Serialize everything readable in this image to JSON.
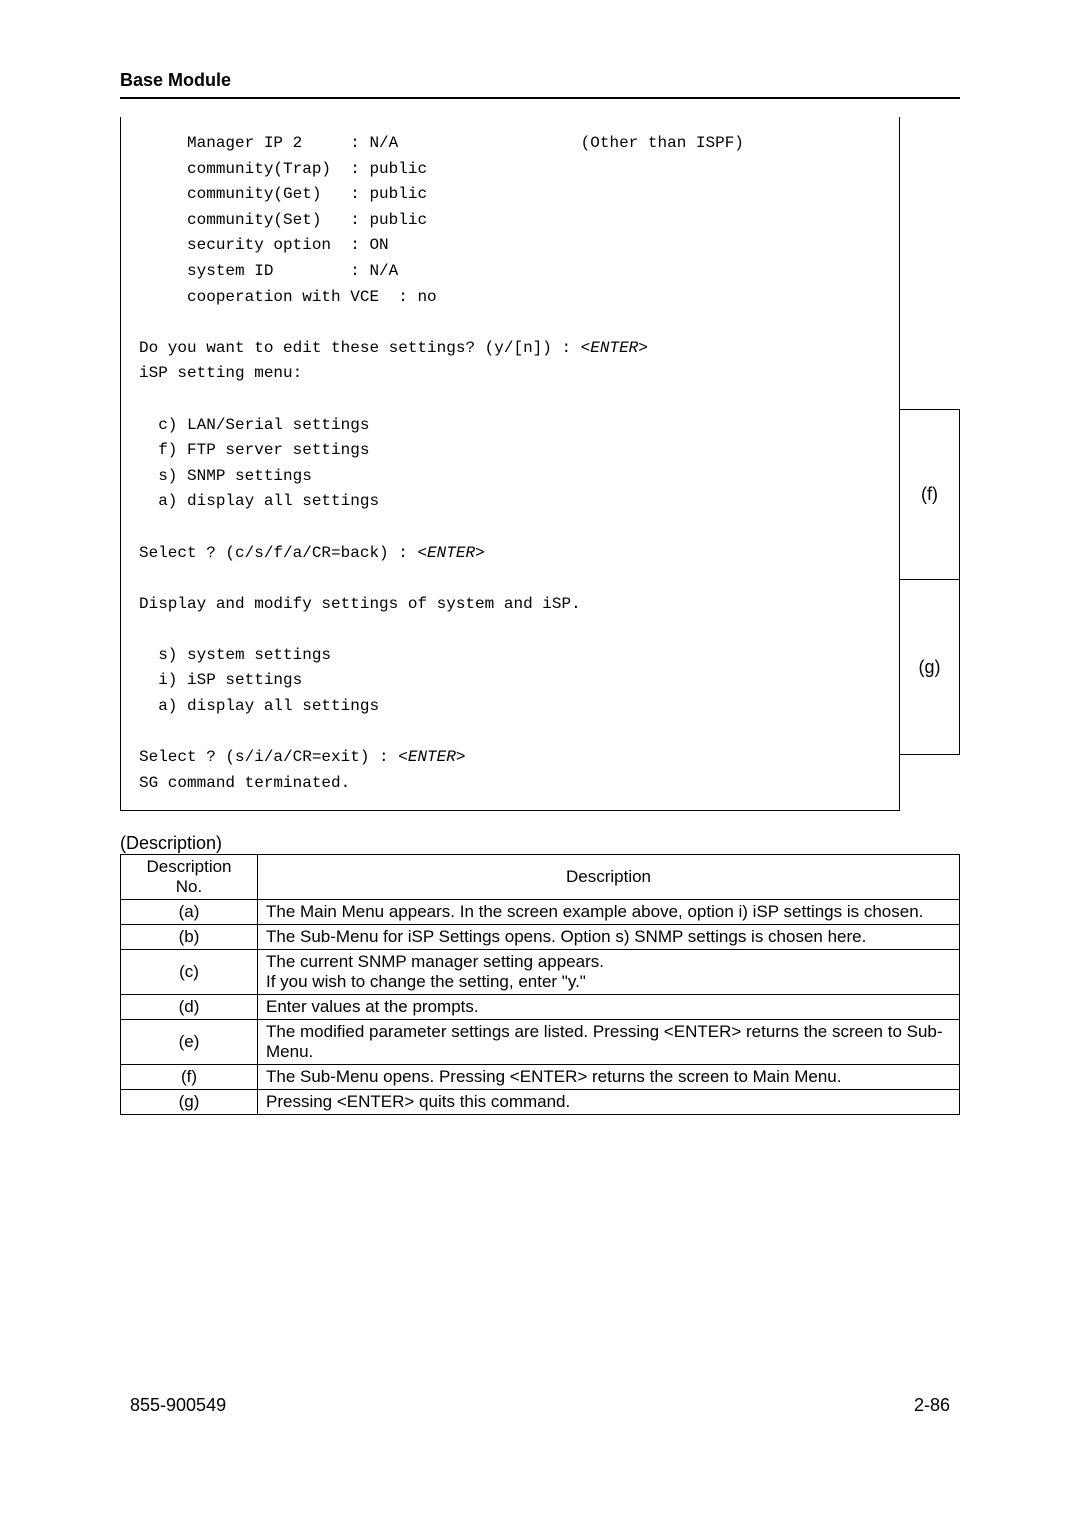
{
  "header": "Base Module",
  "terminal": {
    "line1": "     Manager IP 2     : N/A                   (Other than ISPF)",
    "line2": "     community(Trap)  : public",
    "line3": "     community(Get)   : public",
    "line4": "     community(Set)   : public",
    "line5": "     security option  : ON",
    "line6": "     system ID        : N/A",
    "line7": "     cooperation with VCE  : no",
    "line8": "",
    "prompt_edit": "Do you want to edit these settings? (y/[n]) : ",
    "enter": "<ENTER>",
    "line9": "iSP setting menu:",
    "line10": "",
    "opt_c": "  c) LAN/Serial settings",
    "opt_f": "  f) FTP server settings",
    "opt_s": "  s) SNMP settings",
    "opt_a": "  a) display all settings",
    "line15": "",
    "select1": "Select ? (c/s/f/a/CR=back) : ",
    "line17": "",
    "line18": "Display and modify settings of system and iSP.",
    "line19": "",
    "opt_ss": "  s) system settings",
    "opt_i": "  i) iSP settings",
    "opt_aa": "  a) display all settings",
    "line23": "",
    "select2": "Select ? (s/i/a/CR=exit) : ",
    "line25": "SG command terminated.",
    "line26": ""
  },
  "ann": {
    "f": "(f)",
    "g": "(g)"
  },
  "desc_label": "(Description)",
  "table": {
    "headers": {
      "no": "Description\nNo.",
      "desc": "Description"
    },
    "rows": [
      {
        "no": "(a)",
        "desc": "The Main Menu appears. In the screen example above, option i) iSP settings is chosen."
      },
      {
        "no": "(b)",
        "desc": "The Sub-Menu for iSP Settings opens. Option s) SNMP settings is chosen here."
      },
      {
        "no": "(c)",
        "desc": "The current SNMP manager setting appears.\nIf you wish to change the setting, enter \"y.\""
      },
      {
        "no": "(d)",
        "desc": "Enter values at the prompts."
      },
      {
        "no": "(e)",
        "desc": "The modified parameter settings are listed. Pressing <ENTER> returns the screen to Sub-Menu."
      },
      {
        "no": "(f)",
        "desc": "The Sub-Menu opens. Pressing <ENTER> returns the screen to Main Menu."
      },
      {
        "no": "(g)",
        "desc": "Pressing <ENTER> quits this command."
      }
    ]
  },
  "footer": {
    "left": "855-900549",
    "right": "2-86"
  },
  "layout": {
    "ann_box_f_height": 171,
    "ann_box_g_height": 175
  }
}
